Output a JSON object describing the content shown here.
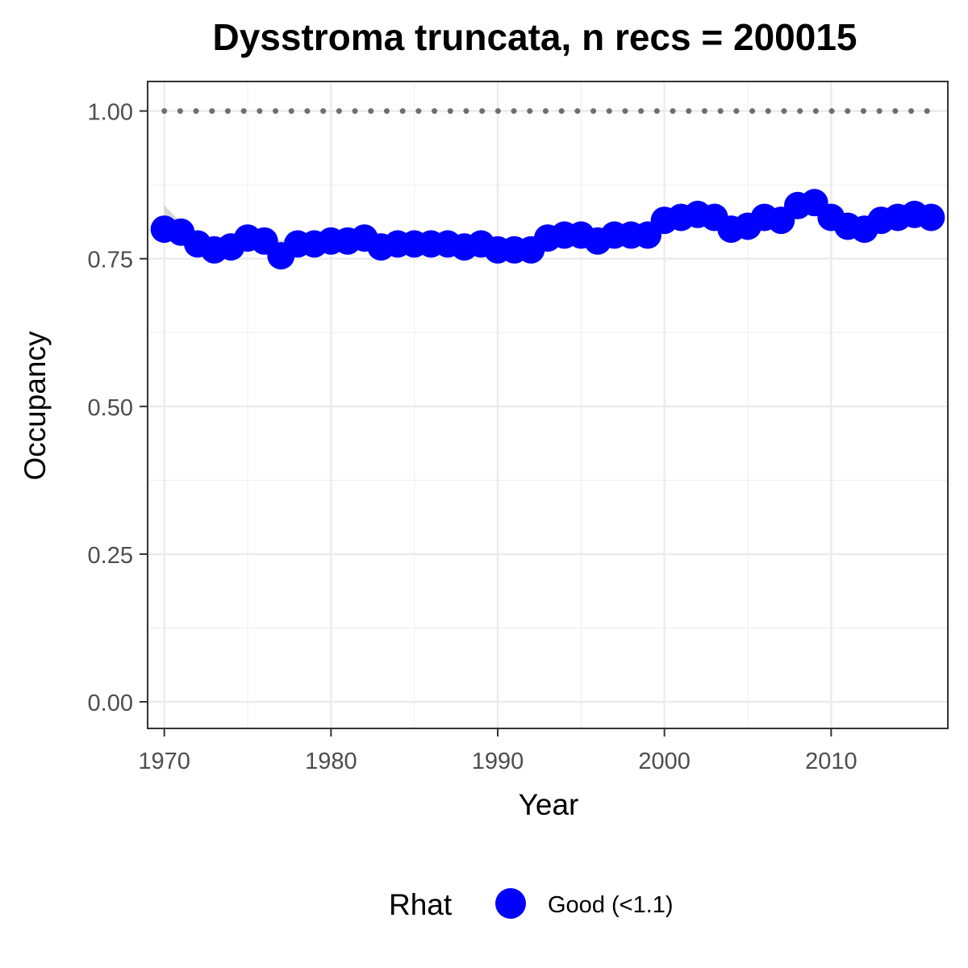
{
  "chart_data": {
    "type": "line",
    "title": "Dysstroma truncata, n recs = 200015",
    "xlabel": "Year",
    "ylabel": "Occupancy",
    "xlim": [
      1969,
      2017
    ],
    "ylim": [
      -0.045,
      1.05
    ],
    "x_ticks": [
      1970,
      1980,
      1990,
      2000,
      2010
    ],
    "x_tick_labels": [
      "1970",
      "1980",
      "1990",
      "2000",
      "2010"
    ],
    "y_ticks": [
      0,
      0.25,
      0.5,
      0.75,
      1.0
    ],
    "y_tick_labels": [
      "0.00",
      "0.25",
      "0.50",
      "0.75",
      "1.00"
    ],
    "grid": true,
    "legend_position": "bottom",
    "reference_line": {
      "y": 1.0,
      "style": "dotted",
      "color": "#6e6e6e"
    },
    "series": [
      {
        "name": "Good (<1.1)",
        "color": "#0000ff",
        "x": [
          1970,
          1971,
          1972,
          1973,
          1974,
          1975,
          1976,
          1977,
          1978,
          1979,
          1980,
          1981,
          1982,
          1983,
          1984,
          1985,
          1986,
          1987,
          1988,
          1989,
          1990,
          1991,
          1992,
          1993,
          1994,
          1995,
          1996,
          1997,
          1998,
          1999,
          2000,
          2001,
          2002,
          2003,
          2004,
          2005,
          2006,
          2007,
          2008,
          2009,
          2010,
          2011,
          2012,
          2013,
          2014,
          2015,
          2016
        ],
        "y": [
          0.8,
          0.795,
          0.775,
          0.765,
          0.77,
          0.785,
          0.78,
          0.755,
          0.775,
          0.775,
          0.78,
          0.78,
          0.785,
          0.77,
          0.775,
          0.775,
          0.775,
          0.775,
          0.77,
          0.775,
          0.765,
          0.765,
          0.765,
          0.785,
          0.79,
          0.79,
          0.78,
          0.79,
          0.79,
          0.79,
          0.815,
          0.82,
          0.825,
          0.82,
          0.8,
          0.805,
          0.82,
          0.815,
          0.84,
          0.845,
          0.82,
          0.805,
          0.8,
          0.815,
          0.82,
          0.825,
          0.82
        ],
        "lower": [
          0.785,
          0.78,
          0.76,
          0.75,
          0.755,
          0.77,
          0.765,
          0.735,
          0.76,
          0.76,
          0.765,
          0.765,
          0.77,
          0.758,
          0.762,
          0.762,
          0.763,
          0.763,
          0.758,
          0.762,
          0.752,
          0.752,
          0.752,
          0.772,
          0.778,
          0.778,
          0.768,
          0.778,
          0.778,
          0.778,
          0.802,
          0.808,
          0.812,
          0.808,
          0.788,
          0.792,
          0.808,
          0.802,
          0.826,
          0.83,
          0.806,
          0.792,
          0.788,
          0.802,
          0.808,
          0.812,
          0.806
        ],
        "upper": [
          0.84,
          0.812,
          0.792,
          0.784,
          0.786,
          0.8,
          0.796,
          0.78,
          0.79,
          0.79,
          0.795,
          0.795,
          0.8,
          0.784,
          0.788,
          0.788,
          0.787,
          0.787,
          0.782,
          0.788,
          0.778,
          0.778,
          0.778,
          0.798,
          0.802,
          0.802,
          0.792,
          0.802,
          0.802,
          0.802,
          0.828,
          0.832,
          0.838,
          0.832,
          0.812,
          0.818,
          0.832,
          0.828,
          0.854,
          0.86,
          0.834,
          0.818,
          0.812,
          0.828,
          0.832,
          0.838,
          0.834
        ]
      }
    ],
    "ci_color": "#c8c8c8"
  },
  "legend": {
    "title": "Rhat",
    "items": [
      {
        "label": "Good (<1.1)",
        "color": "#0000ff"
      }
    ]
  }
}
